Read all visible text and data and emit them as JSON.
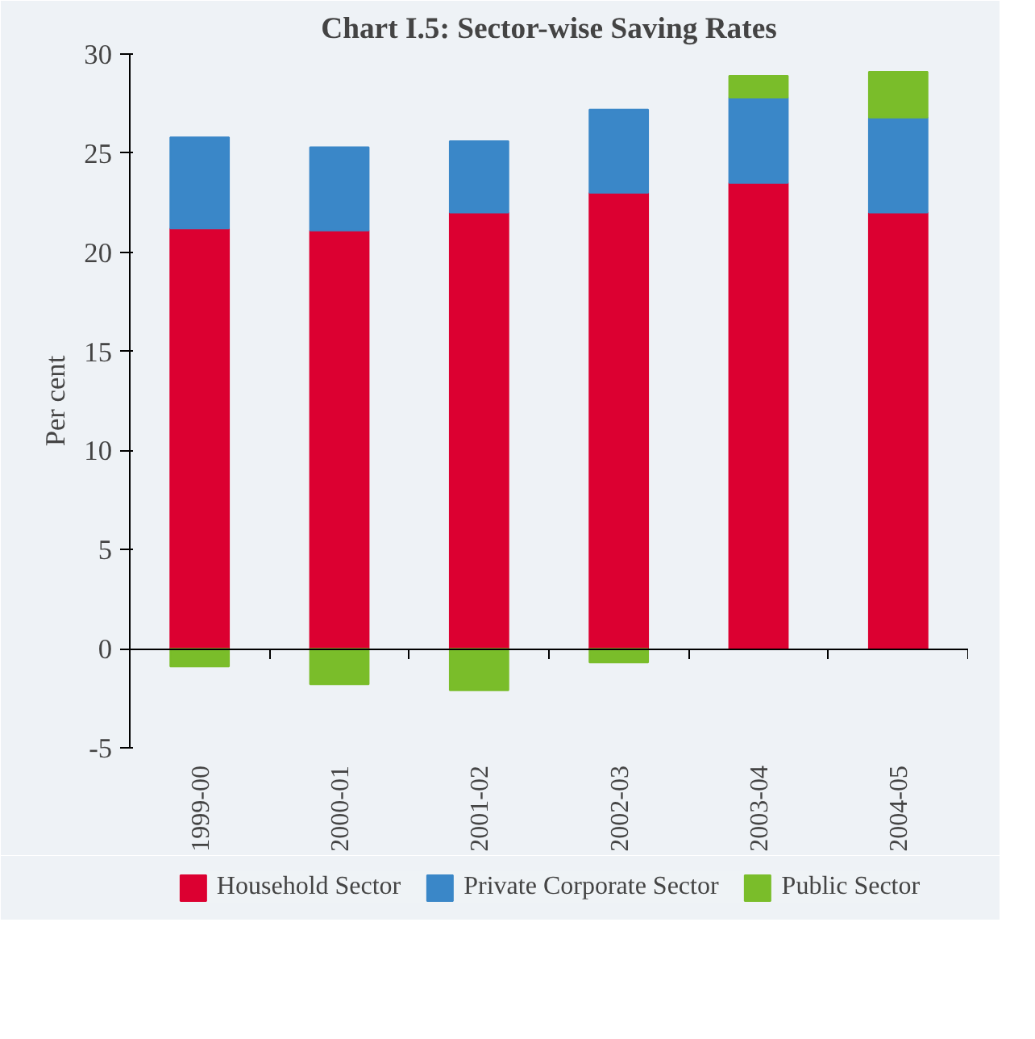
{
  "chart_data": {
    "type": "bar",
    "title": "Chart I.5: Sector-wise Saving Rates",
    "ylabel": "Per cent",
    "stacked": true,
    "categories": [
      "1999-00",
      "2000-01",
      "2001-02",
      "2002-03",
      "2003-04",
      "2004-05"
    ],
    "series": [
      {
        "name": "Household Sector",
        "color": "#dc0031",
        "values": [
          21.2,
          21.1,
          22.0,
          23.0,
          23.5,
          22.0
        ]
      },
      {
        "name": "Private Corporate Sector",
        "color": "#3a87c8",
        "values": [
          4.6,
          4.2,
          3.6,
          4.2,
          4.3,
          4.8
        ]
      },
      {
        "name": "Public Sector",
        "color": "#7abd2a",
        "values": [
          -0.9,
          -1.8,
          -2.1,
          -0.7,
          1.1,
          2.3
        ]
      }
    ],
    "ylim": [
      -5,
      30
    ],
    "yticks": [
      -5,
      0,
      5,
      10,
      15,
      20,
      25,
      30
    ],
    "legend": "bottom"
  }
}
